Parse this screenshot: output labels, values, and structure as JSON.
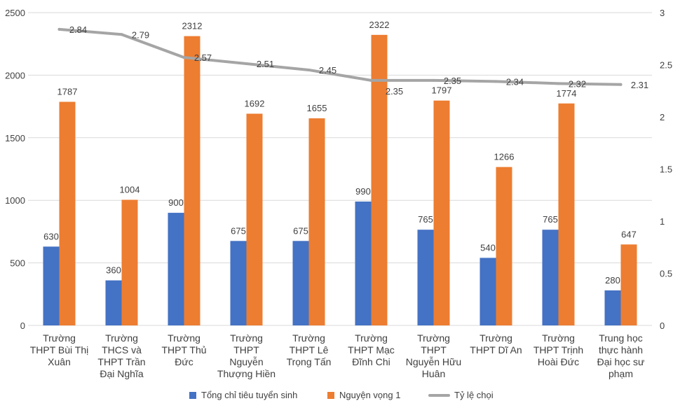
{
  "chart_data": {
    "type": "bar",
    "categories": [
      [
        "Trường",
        "THPT Bùi Thị",
        "Xuân"
      ],
      [
        "Trường",
        "THCS và",
        "THPT Trần",
        "Đại Nghĩa"
      ],
      [
        "Trường",
        "THPT Thủ",
        "Đức"
      ],
      [
        "Trường",
        "THPT",
        "Nguyễn",
        "Thượng Hiền"
      ],
      [
        "Trường",
        "THPT Lê",
        "Trọng Tấn"
      ],
      [
        "Trường",
        "THPT Mạc",
        "Đĩnh Chi"
      ],
      [
        "Trường",
        "THPT",
        "Nguyễn Hữu",
        "Huân"
      ],
      [
        "Trường",
        "THPT Dĩ An"
      ],
      [
        "Trường",
        "THPT Trịnh",
        "Hoài Đức"
      ],
      [
        "Trung học",
        "thực hành",
        "Đại học sư",
        "phạm"
      ]
    ],
    "series": [
      {
        "name": "Tổng chỉ tiêu tuyển sinh",
        "type": "bar",
        "axis": "left",
        "color": "#4472c4",
        "values": [
          630,
          360,
          900,
          675,
          675,
          990,
          765,
          540,
          765,
          280
        ],
        "labels": [
          "630",
          "360",
          "900",
          "675",
          "675",
          "990",
          "765",
          "540",
          "765",
          "280"
        ]
      },
      {
        "name": "Nguyện vọng 1",
        "type": "bar",
        "axis": "left",
        "color": "#ed7d31",
        "values": [
          1787,
          1004,
          2312,
          1692,
          1655,
          2322,
          1797,
          1266,
          1774,
          647
        ],
        "labels": [
          "1787",
          "1004",
          "2312",
          "1692",
          "1655",
          "2322",
          "1797",
          "1266",
          "1774",
          "647"
        ]
      },
      {
        "name": "Tỷ lệ chọi",
        "type": "line",
        "axis": "right",
        "color": "#a5a5a5",
        "values": [
          2.84,
          2.79,
          2.57,
          2.51,
          2.45,
          2.35,
          2.35,
          2.34,
          2.32,
          2.31
        ],
        "labels": [
          "2.84",
          "2.79",
          "2.57",
          "2.51",
          "2.45",
          "2.35",
          "2.35",
          "2.34",
          "2.32",
          "2.31"
        ]
      }
    ],
    "y_left": {
      "min": 0,
      "max": 2500,
      "ticks": [
        "0",
        "500",
        "1000",
        "1500",
        "2000",
        "2500"
      ]
    },
    "y_right": {
      "min": 0,
      "max": 3,
      "ticks": [
        "0",
        "0.5",
        "1",
        "1.5",
        "2",
        "2.5",
        "3"
      ]
    },
    "grid": true,
    "legend_position": "bottom",
    "legend": [
      "Tổng chỉ tiêu tuyển sinh",
      "Nguyện vọng 1",
      "Tỷ lệ chọi"
    ],
    "title": "",
    "xlabel": "",
    "ylabel": ""
  }
}
